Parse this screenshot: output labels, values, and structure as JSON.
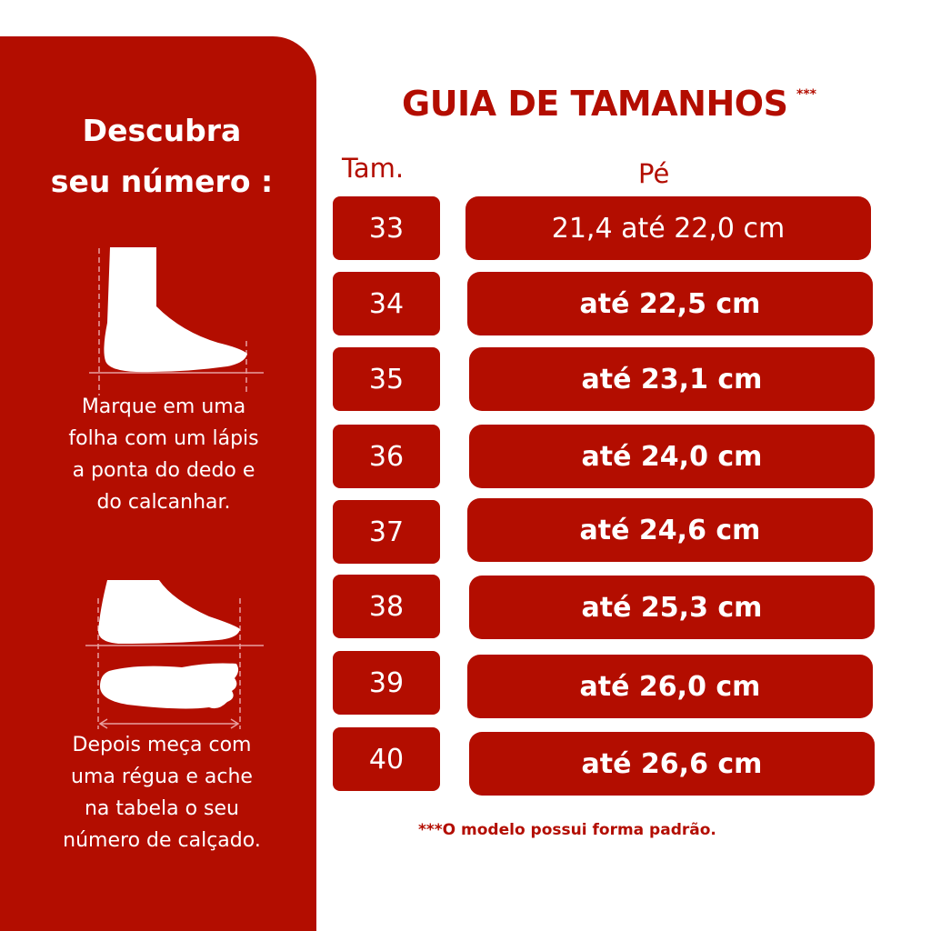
{
  "colors": {
    "brand": "#b30d00",
    "background": "#ffffff",
    "text_on_brand": "#ffffff"
  },
  "sidebar": {
    "title_line1": "Descubra",
    "title_line2": "seu número :",
    "step1": [
      "Marque em uma",
      "folha com um lápis",
      "a ponta do dedo e",
      "do calcanhar."
    ],
    "step2": [
      "Depois meça com",
      "uma régua e ache",
      "na tabela o seu",
      "número de calçado."
    ],
    "icons": [
      "foot-side-measure-icon",
      "foot-side-and-sole-measure-icon"
    ]
  },
  "header": {
    "title": "GUIA DE TAMANHOS",
    "stars": "***"
  },
  "table": {
    "col_size": "Tam.",
    "col_foot": "Pé",
    "rows": [
      {
        "size": "33",
        "foot": "21,4 até 22,0 cm"
      },
      {
        "size": "34",
        "foot": "até 22,5 cm"
      },
      {
        "size": "35",
        "foot": "até 23,1 cm"
      },
      {
        "size": "36",
        "foot": "até 24,0 cm"
      },
      {
        "size": "37",
        "foot": "até 24,6 cm"
      },
      {
        "size": "38",
        "foot": "até 25,3 cm"
      },
      {
        "size": "39",
        "foot": "até 26,0 cm"
      },
      {
        "size": "40",
        "foot": "até 26,6 cm"
      }
    ]
  },
  "footnote": "***O modelo possui forma padrão."
}
